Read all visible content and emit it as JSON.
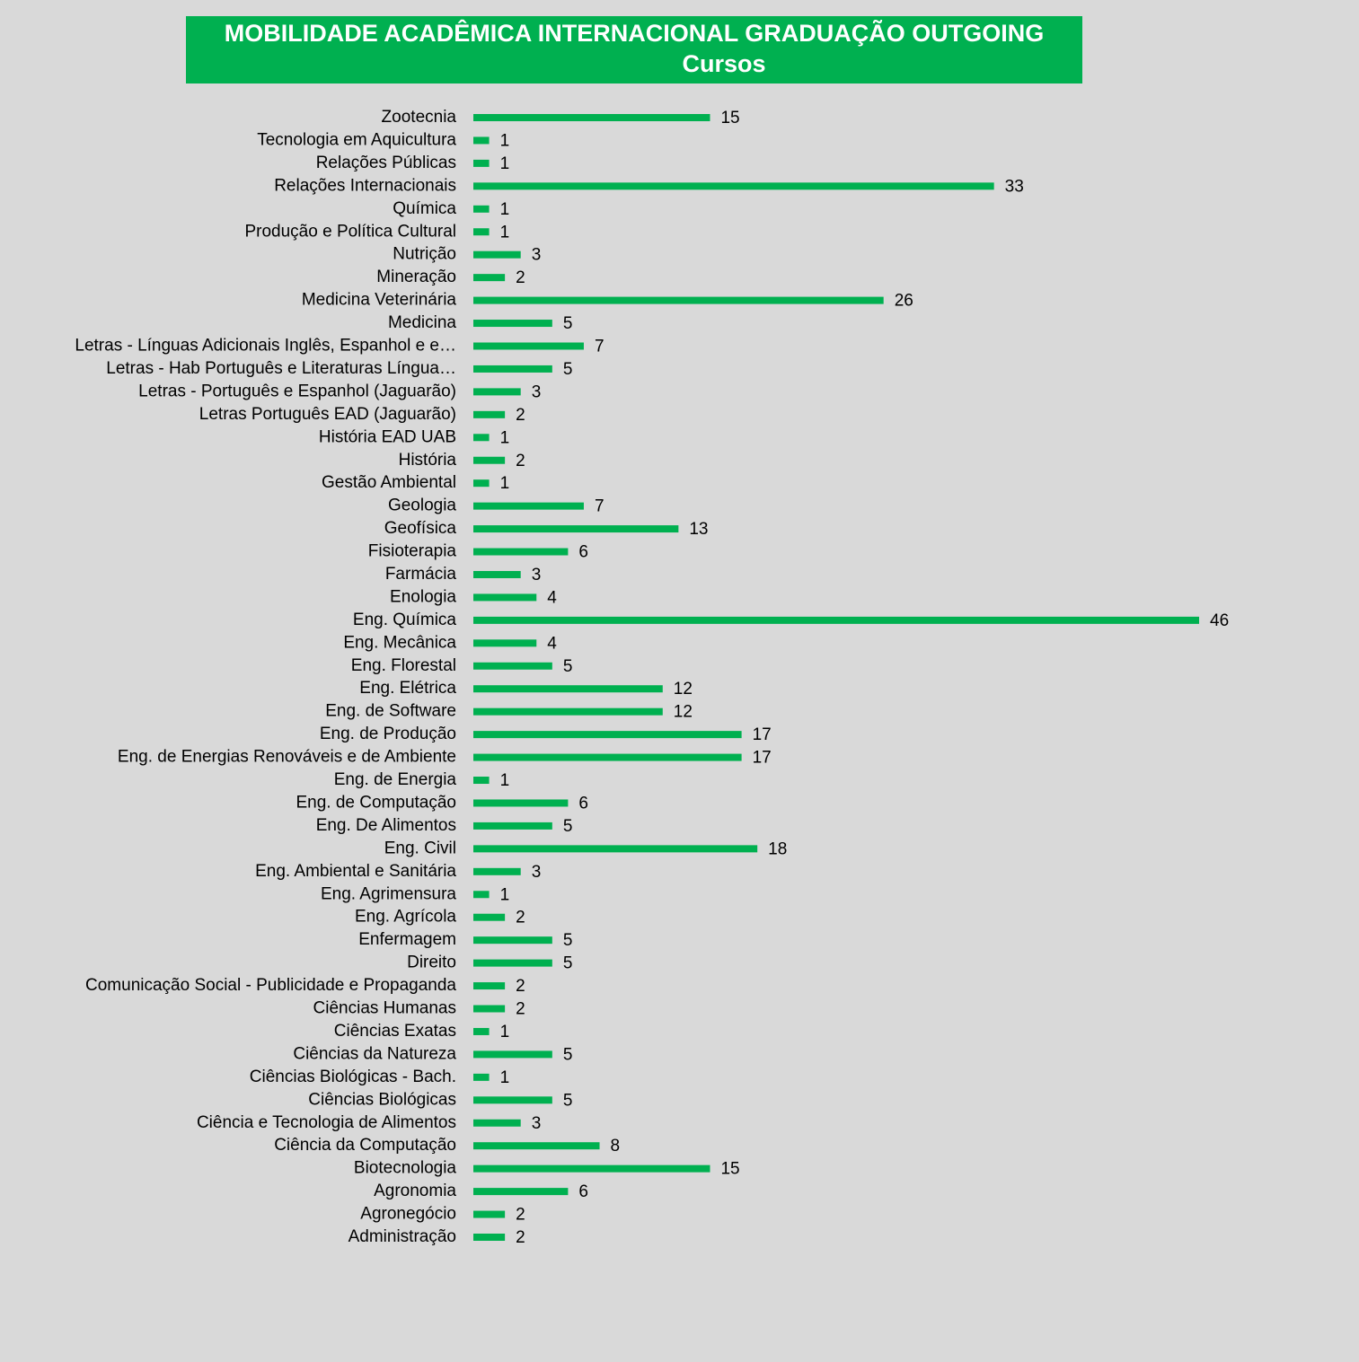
{
  "chart_data": {
    "type": "bar",
    "orientation": "horizontal",
    "title": "MOBILIDADE ACADÊMICA INTERNACIONAL GRADUAÇÃO OUTGOING",
    "subtitle": "Cursos",
    "color": "#00b050",
    "categories": [
      "Zootecnia",
      "Tecnologia em Aquicultura",
      "Relações Públicas",
      "Relações Internacionais",
      "Química",
      "Produção e Política Cultural",
      "Nutrição",
      "Mineração",
      "Medicina Veterinária",
      "Medicina",
      "Letras - Línguas Adicionais Inglês, Espanhol e e…",
      "Letras - Hab Português e Literaturas Língua…",
      "Letras - Português e Espanhol (Jaguarão)",
      "Letras Português EAD (Jaguarão)",
      "História EAD UAB",
      "História",
      "Gestão Ambiental",
      "Geologia",
      "Geofísica",
      "Fisioterapia",
      "Farmácia",
      "Enologia",
      "Eng. Química",
      "Eng. Mecânica",
      "Eng. Florestal",
      "Eng. Elétrica",
      "Eng. de Software",
      "Eng. de Produção",
      "Eng. de Energias Renováveis e de Ambiente",
      "Eng. de Energia",
      "Eng. de Computação",
      "Eng. De Alimentos",
      "Eng. Civil",
      "Eng. Ambiental e Sanitária",
      "Eng. Agrimensura",
      "Eng. Agrícola",
      "Enfermagem",
      "Direito",
      "Comunicação Social - Publicidade e Propaganda",
      "Ciências Humanas",
      "Ciências Exatas",
      "Ciências da Natureza",
      "Ciências Biológicas - Bach.",
      "Ciências Biológicas",
      "Ciência e Tecnologia de Alimentos",
      "Ciência da Computação",
      "Biotecnologia",
      "Agronomia",
      "Agronegócio",
      "Administração"
    ],
    "values": [
      15,
      1,
      1,
      33,
      1,
      1,
      3,
      2,
      26,
      5,
      7,
      5,
      3,
      2,
      1,
      2,
      1,
      7,
      13,
      6,
      3,
      4,
      46,
      4,
      5,
      12,
      12,
      17,
      17,
      1,
      6,
      5,
      18,
      3,
      1,
      2,
      5,
      5,
      2,
      2,
      1,
      5,
      1,
      5,
      3,
      8,
      15,
      6,
      2,
      2
    ]
  }
}
